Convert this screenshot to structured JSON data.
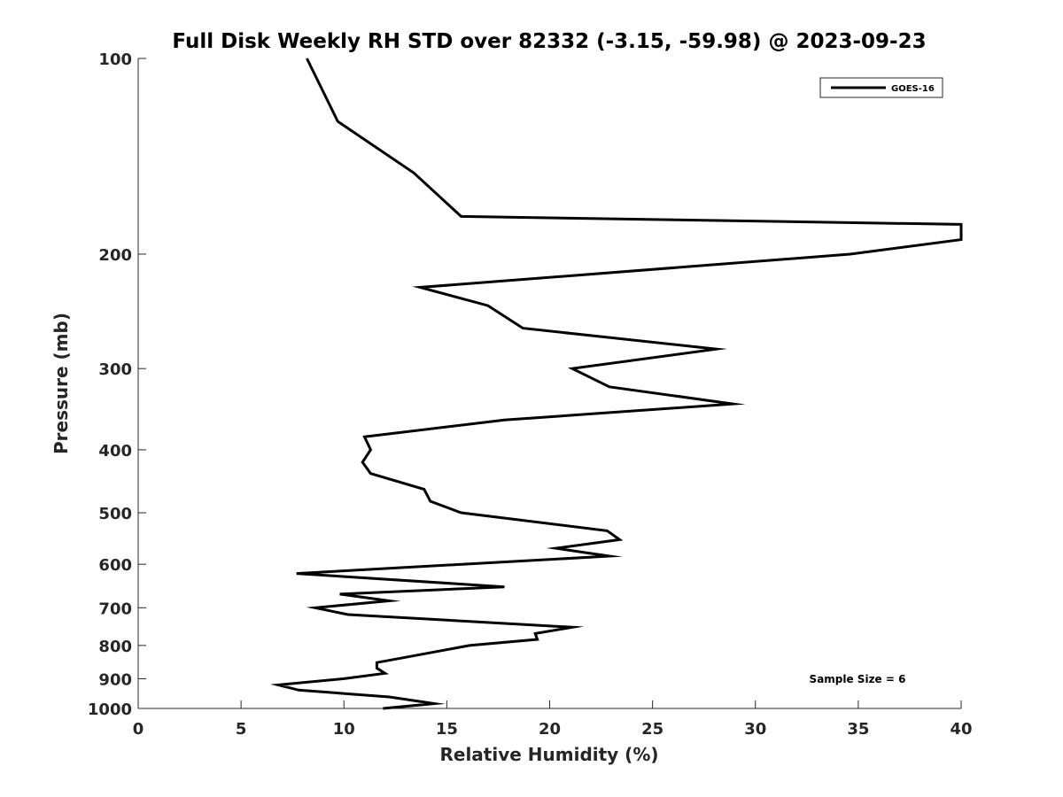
{
  "chart_data": {
    "type": "line",
    "title": "Full Disk Weekly RH STD over 82332 (-3.15, -59.98) @ 2023-09-23",
    "xlabel": "Relative Humidity (%)",
    "ylabel": "Pressure (mb)",
    "xlim": [
      0,
      40
    ],
    "ylim": [
      100,
      1000
    ],
    "yscale": "log",
    "ydirection": "reversed",
    "x_ticks": [
      0,
      5,
      10,
      15,
      20,
      25,
      30,
      35,
      40
    ],
    "y_ticks": [
      100,
      200,
      300,
      400,
      500,
      600,
      700,
      800,
      900,
      1000
    ],
    "legend": {
      "location": "top-right",
      "entries": [
        "GOES-16"
      ]
    },
    "annotation": "Sample Size = 6",
    "series": [
      {
        "name": "GOES-16",
        "color": "#000000",
        "points": [
          [
            8.2,
            100
          ],
          [
            9.7,
            125
          ],
          [
            13.4,
            150
          ],
          [
            15.7,
            175
          ],
          [
            40.0,
            180
          ],
          [
            40.0,
            190
          ],
          [
            34.6,
            200
          ],
          [
            13.7,
            225
          ],
          [
            17.0,
            240
          ],
          [
            18.7,
            260
          ],
          [
            28.1,
            280
          ],
          [
            21.1,
            300
          ],
          [
            22.9,
            320
          ],
          [
            28.9,
            340
          ],
          [
            17.8,
            360
          ],
          [
            11.0,
            382
          ],
          [
            11.3,
            400
          ],
          [
            10.9,
            418
          ],
          [
            11.3,
            435
          ],
          [
            13.9,
            460
          ],
          [
            14.2,
            480
          ],
          [
            15.7,
            500
          ],
          [
            22.8,
            533
          ],
          [
            23.4,
            550
          ],
          [
            20.3,
            567
          ],
          [
            22.9,
            583
          ],
          [
            7.7,
            620
          ],
          [
            17.8,
            650
          ],
          [
            9.8,
            667
          ],
          [
            12.2,
            683
          ],
          [
            8.6,
            700
          ],
          [
            10.2,
            717
          ],
          [
            21.1,
            750
          ],
          [
            19.3,
            767
          ],
          [
            19.4,
            783
          ],
          [
            16.1,
            800
          ],
          [
            13.1,
            833
          ],
          [
            11.6,
            850
          ],
          [
            11.6,
            867
          ],
          [
            12.0,
            883
          ],
          [
            10.0,
            900
          ],
          [
            6.8,
            920
          ],
          [
            7.8,
            937
          ],
          [
            12.2,
            960
          ],
          [
            14.4,
            983
          ],
          [
            11.9,
            1000
          ]
        ]
      }
    ]
  }
}
